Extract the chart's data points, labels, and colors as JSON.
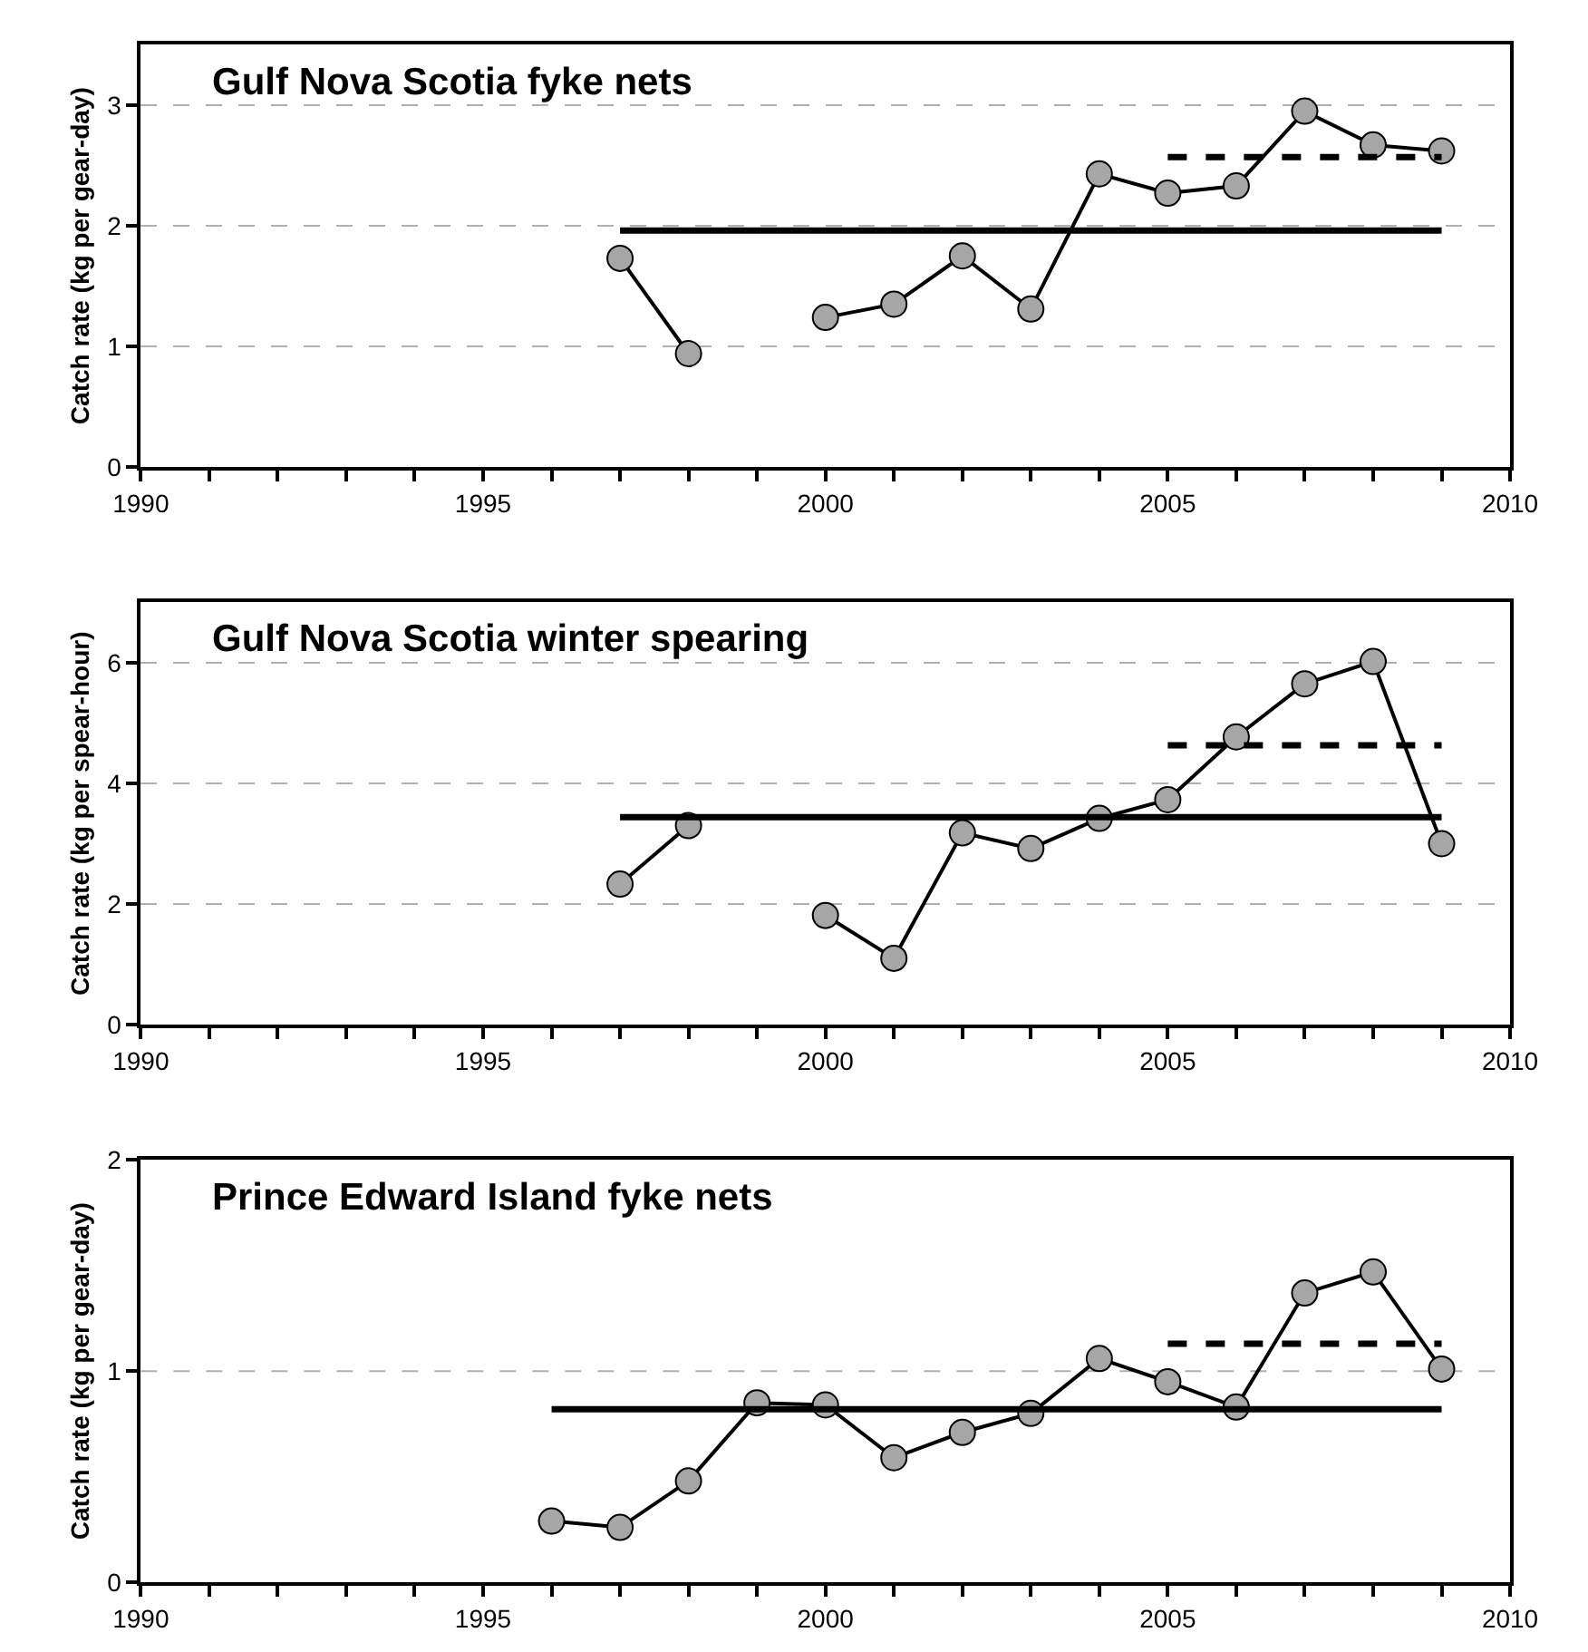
{
  "chart_data": [
    {
      "type": "line",
      "title": "Gulf Nova Scotia fyke nets",
      "ylabel": "Catch rate (kg per gear-day)",
      "x": [
        1997,
        1998,
        1999,
        2000,
        2001,
        2002,
        2003,
        2004,
        2005,
        2006,
        2007,
        2008,
        2009
      ],
      "series": [
        {
          "color": "#a6a6a6",
          "marker": "circle",
          "values": [
            1.73,
            0.94,
            null,
            1.24,
            1.35,
            1.75,
            1.31,
            2.43,
            2.27,
            2.33,
            2.95,
            2.67,
            2.62
          ]
        },
        {
          "color": "#000000",
          "marker": "none",
          "line_style": "solid",
          "x": [
            1997,
            2009
          ],
          "values": [
            1.96,
            1.96
          ]
        },
        {
          "color": "#000000",
          "marker": "none",
          "line_style": "dashed",
          "x": [
            2005,
            2009
          ],
          "values": [
            2.57,
            2.57
          ]
        }
      ],
      "xlim": [
        1990,
        2010
      ],
      "xticks": [
        1990,
        {
          "value": 1991,
          "label": null
        },
        {
          "value": 1992,
          "label": null
        },
        {
          "value": 1993,
          "label": null
        },
        {
          "value": 1994,
          "label": null
        },
        1995,
        {
          "value": 1996,
          "label": null
        },
        {
          "value": 1997,
          "label": null
        },
        {
          "value": 1998,
          "label": null
        },
        {
          "value": 1999,
          "label": null
        },
        2000,
        {
          "value": 2001,
          "label": null
        },
        {
          "value": 2002,
          "label": null
        },
        {
          "value": 2003,
          "label": null
        },
        {
          "value": 2004,
          "label": null
        },
        2005,
        {
          "value": 2006,
          "label": null
        },
        {
          "value": 2007,
          "label": null
        },
        {
          "value": 2008,
          "label": null
        },
        {
          "value": 2009,
          "label": null
        },
        2010
      ],
      "ylim": [
        0,
        3.5
      ],
      "yticks": [
        0,
        1,
        2,
        3
      ],
      "grid": "y"
    },
    {
      "type": "line",
      "title": "Gulf Nova Scotia winter spearing",
      "ylabel": "Catch rate (kg per spear-hour)",
      "x": [
        1997,
        1998,
        1999,
        2000,
        2001,
        2002,
        2003,
        2004,
        2005,
        2006,
        2007,
        2008,
        2009
      ],
      "series": [
        {
          "color": "#a6a6a6",
          "marker": "circle",
          "values": [
            2.33,
            3.3,
            null,
            1.81,
            1.1,
            3.18,
            2.92,
            3.42,
            3.73,
            4.77,
            5.65,
            6.02,
            3.0
          ]
        },
        {
          "color": "#000000",
          "marker": "none",
          "line_style": "solid",
          "x": [
            1997,
            2009
          ],
          "values": [
            3.44,
            3.44
          ]
        },
        {
          "color": "#000000",
          "marker": "none",
          "line_style": "dashed",
          "x": [
            2005,
            2009
          ],
          "values": [
            4.63,
            4.63
          ]
        }
      ],
      "xlim": [
        1990,
        2010
      ],
      "xticks": [
        1990,
        {
          "value": 1991,
          "label": null
        },
        {
          "value": 1992,
          "label": null
        },
        {
          "value": 1993,
          "label": null
        },
        {
          "value": 1994,
          "label": null
        },
        1995,
        {
          "value": 1996,
          "label": null
        },
        {
          "value": 1997,
          "label": null
        },
        {
          "value": 1998,
          "label": null
        },
        {
          "value": 1999,
          "label": null
        },
        2000,
        {
          "value": 2001,
          "label": null
        },
        {
          "value": 2002,
          "label": null
        },
        {
          "value": 2003,
          "label": null
        },
        {
          "value": 2004,
          "label": null
        },
        2005,
        {
          "value": 2006,
          "label": null
        },
        {
          "value": 2007,
          "label": null
        },
        {
          "value": 2008,
          "label": null
        },
        {
          "value": 2009,
          "label": null
        },
        2010
      ],
      "ylim": [
        0,
        7
      ],
      "yticks": [
        0,
        2,
        4,
        6
      ],
      "grid": "y"
    },
    {
      "type": "line",
      "title": "Prince Edward Island fyke nets",
      "ylabel": "Catch rate (kg per gear-day)",
      "x": [
        1996,
        1997,
        1998,
        1999,
        2000,
        2001,
        2002,
        2003,
        2004,
        2005,
        2006,
        2007,
        2008,
        2009
      ],
      "series": [
        {
          "color": "#a6a6a6",
          "marker": "circle",
          "values": [
            0.29,
            0.26,
            0.48,
            0.85,
            0.84,
            0.59,
            0.71,
            0.8,
            1.06,
            0.95,
            0.83,
            1.37,
            1.47,
            1.01
          ]
        },
        {
          "color": "#000000",
          "marker": "none",
          "line_style": "solid",
          "x": [
            1996,
            2009
          ],
          "values": [
            0.82,
            0.82
          ]
        },
        {
          "color": "#000000",
          "marker": "none",
          "line_style": "dashed",
          "x": [
            2005,
            2009
          ],
          "values": [
            1.13,
            1.13
          ]
        }
      ],
      "xlim": [
        1990,
        2010
      ],
      "xticks": [
        1990,
        {
          "value": 1991,
          "label": null
        },
        {
          "value": 1992,
          "label": null
        },
        {
          "value": 1993,
          "label": null
        },
        {
          "value": 1994,
          "label": null
        },
        1995,
        {
          "value": 1996,
          "label": null
        },
        {
          "value": 1997,
          "label": null
        },
        {
          "value": 1998,
          "label": null
        },
        {
          "value": 1999,
          "label": null
        },
        2000,
        {
          "value": 2001,
          "label": null
        },
        {
          "value": 2002,
          "label": null
        },
        {
          "value": 2003,
          "label": null
        },
        {
          "value": 2004,
          "label": null
        },
        2005,
        {
          "value": 2006,
          "label": null
        },
        {
          "value": 2007,
          "label": null
        },
        {
          "value": 2008,
          "label": null
        },
        {
          "value": 2009,
          "label": null
        },
        2010
      ],
      "ylim": [
        0,
        2
      ],
      "yticks": [
        0,
        1,
        2
      ],
      "ref_lines": [
        {
          "axis": "y",
          "value": 1,
          "color": "#b0b0b0",
          "line_style": "dashed"
        }
      ]
    }
  ]
}
